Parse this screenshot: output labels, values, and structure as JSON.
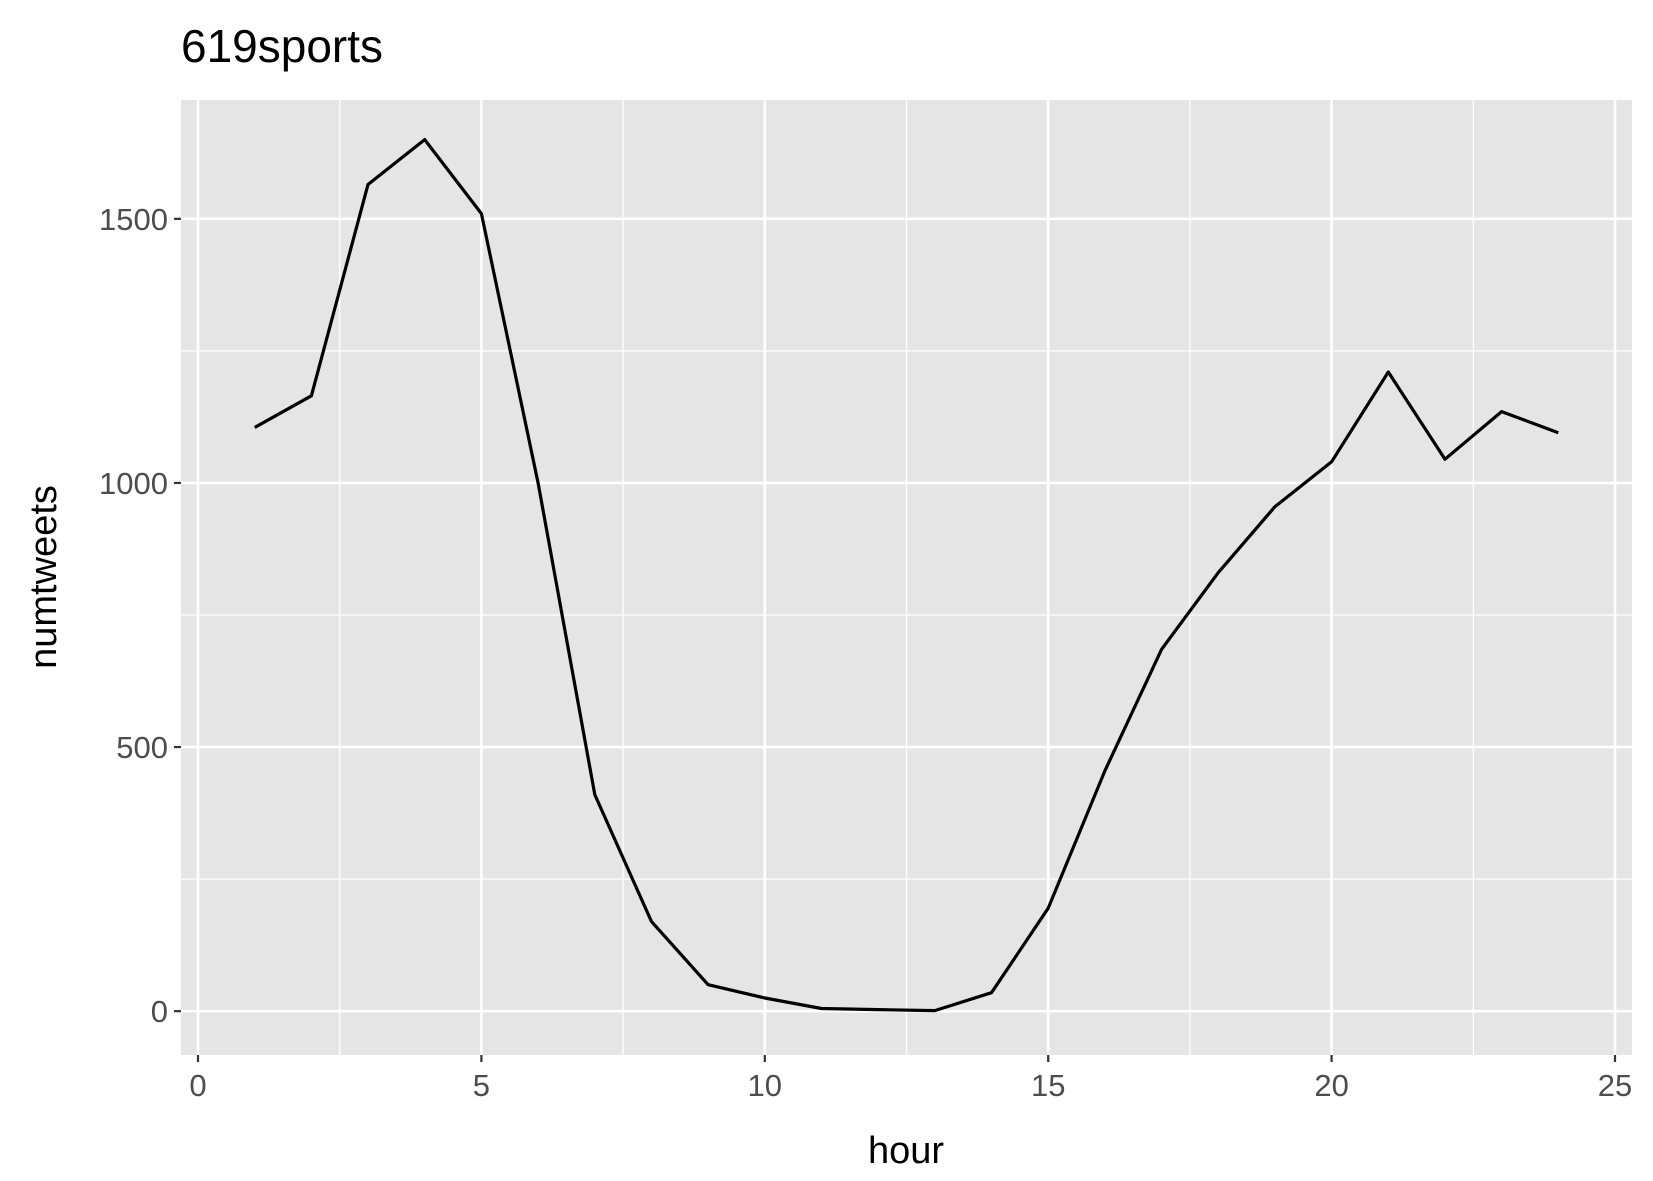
{
  "chart_data": {
    "type": "line",
    "title": "619sports",
    "xlabel": "hour",
    "ylabel": "numtweets",
    "xlim": [
      -0.3,
      25.3
    ],
    "ylim": [
      -83,
      1725
    ],
    "xticks": [
      0,
      5,
      10,
      15,
      20,
      25
    ],
    "xtick_labels": [
      "0",
      "5",
      "10",
      "15",
      "20",
      "25"
    ],
    "yticks": [
      0,
      500,
      1000,
      1500
    ],
    "ytick_labels": [
      "0",
      "500",
      "1000",
      "1500"
    ],
    "grid": true,
    "panel_background": "#e5e5e5",
    "grid_color": "#ffffff",
    "line_color": "#000000",
    "series": [
      {
        "x": [
          1,
          2,
          3,
          4,
          5,
          6,
          7,
          8,
          9,
          10,
          11,
          12,
          13,
          14,
          15,
          16,
          17,
          18,
          19,
          20,
          21,
          22,
          23,
          24
        ],
        "values": [
          1105,
          1165,
          1565,
          1650,
          1510,
          1000,
          410,
          170,
          50,
          25,
          5,
          3,
          1,
          35,
          195,
          455,
          685,
          830,
          955,
          1040,
          1210,
          1045,
          1135,
          1095
        ]
      }
    ]
  }
}
